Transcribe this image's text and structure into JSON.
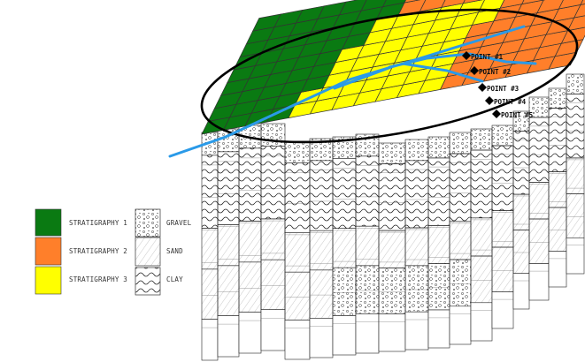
{
  "legend": {
    "stratigraphy": [
      {
        "label": "STRATIGRAPHY 1",
        "color": "#0a7a12"
      },
      {
        "label": "STRATIGRAPHY 2",
        "color": "#ff7f2a"
      },
      {
        "label": "STRATIGRAPHY 3",
        "color": "#ffff00"
      }
    ],
    "soils": [
      {
        "label": "GRAVEL",
        "pattern": "gravel"
      },
      {
        "label": "SAND",
        "pattern": "sand"
      },
      {
        "label": "CLAY",
        "pattern": "clay"
      }
    ]
  },
  "points": [
    {
      "label": "POINT #1"
    },
    {
      "label": "POINT #2"
    },
    {
      "label": "POINT #3"
    },
    {
      "label": "POINT #4"
    },
    {
      "label": "POINT #5"
    }
  ],
  "colors": {
    "river": "#2a9ae8",
    "boundary": "#000000",
    "grid_line": "#333333"
  }
}
